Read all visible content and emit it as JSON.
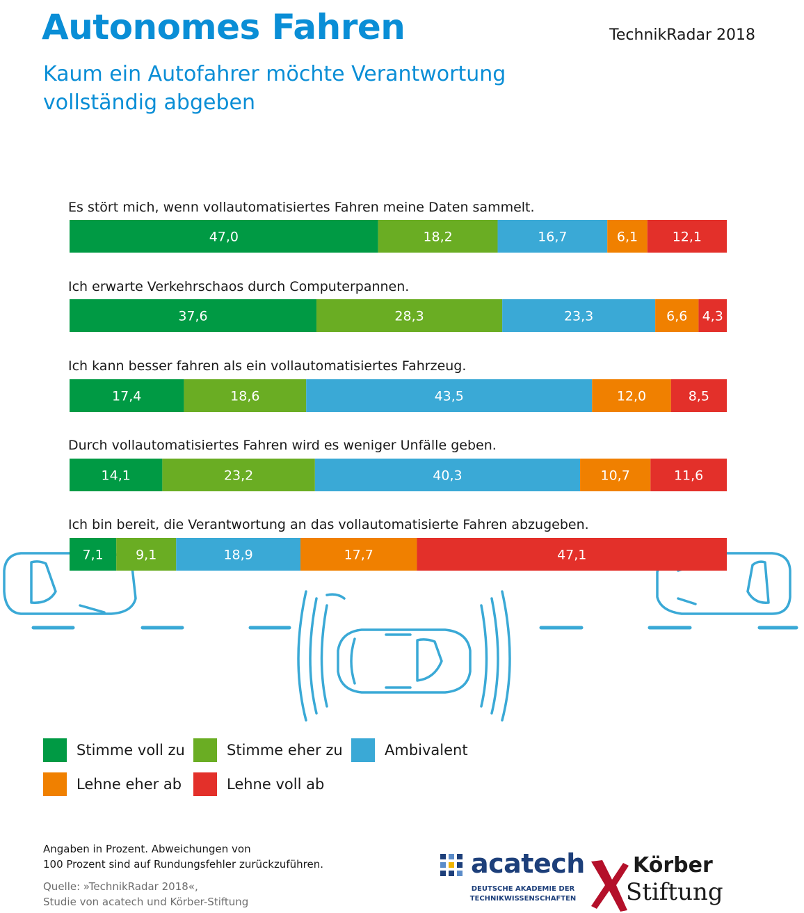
{
  "header": {
    "title": "Autonomes Fahren",
    "subtitle": "Kaum ein Autofahrer möchte Verantwortung vollständig abgeben",
    "brand": "TechnikRadar 2018"
  },
  "chart_data": {
    "type": "bar",
    "orientation": "horizontal",
    "stacked": true,
    "unit": "Prozent",
    "categories": [
      "Es stört mich, wenn vollautomatisiertes Fahren meine Daten sammelt.",
      "Ich erwarte Verkehrschaos durch Computerpannen.",
      "Ich kann besser fahren als ein vollautomatisiertes Fahrzeug.",
      "Durch vollautomatisiertes Fahren wird es weniger Unfälle geben.",
      "Ich bin bereit, die Verantwortung an das vollautomatisierte Fahren abzugeben."
    ],
    "series": [
      {
        "name": "Stimme voll zu",
        "color": "#009a44",
        "values": [
          47.0,
          37.6,
          17.4,
          14.1,
          7.1
        ]
      },
      {
        "name": "Stimme eher zu",
        "color": "#6aad23",
        "values": [
          18.2,
          28.3,
          18.6,
          23.2,
          9.1
        ]
      },
      {
        "name": "Ambivalent",
        "color": "#3aa9d6",
        "values": [
          16.7,
          23.3,
          43.5,
          40.3,
          18.9
        ]
      },
      {
        "name": "Lehne eher ab",
        "color": "#f08000",
        "values": [
          6.1,
          6.6,
          12.0,
          10.7,
          17.7
        ]
      },
      {
        "name": "Lehne voll ab",
        "color": "#e3302a",
        "values": [
          12.1,
          4.3,
          8.5,
          11.6,
          47.1
        ]
      }
    ],
    "value_labels": [
      [
        "47,0",
        "18,2",
        "16,7",
        "6,1",
        "12,1"
      ],
      [
        "37,6",
        "28,3",
        "23,3",
        "6,6",
        "4,3"
      ],
      [
        "17,4",
        "18,6",
        "43,5",
        "12,0",
        "8,5"
      ],
      [
        "14,1",
        "23,2",
        "40,3",
        "10,7",
        "11,6"
      ],
      [
        "7,1",
        "9,1",
        "18,9",
        "17,7",
        "47,1"
      ]
    ],
    "xlim": [
      0,
      100
    ],
    "grid": false,
    "legend_position": "bottom"
  },
  "notes": {
    "line1": "Angaben in Prozent. Abweichungen von",
    "line2": "100 Prozent sind auf Rundungsfehler zurückzuführen.",
    "source1": "Quelle: »TechnikRadar 2018«,",
    "source2": "Studie von acatech und Körber-Stiftung"
  },
  "logos": {
    "acatech_name": "acatech",
    "acatech_line1": "DEUTSCHE AKADEMIE DER",
    "acatech_line2": "TECHNIKWISSENSCHAFTEN",
    "koerber_line1": "Körber",
    "koerber_line2": "Stiftung"
  }
}
